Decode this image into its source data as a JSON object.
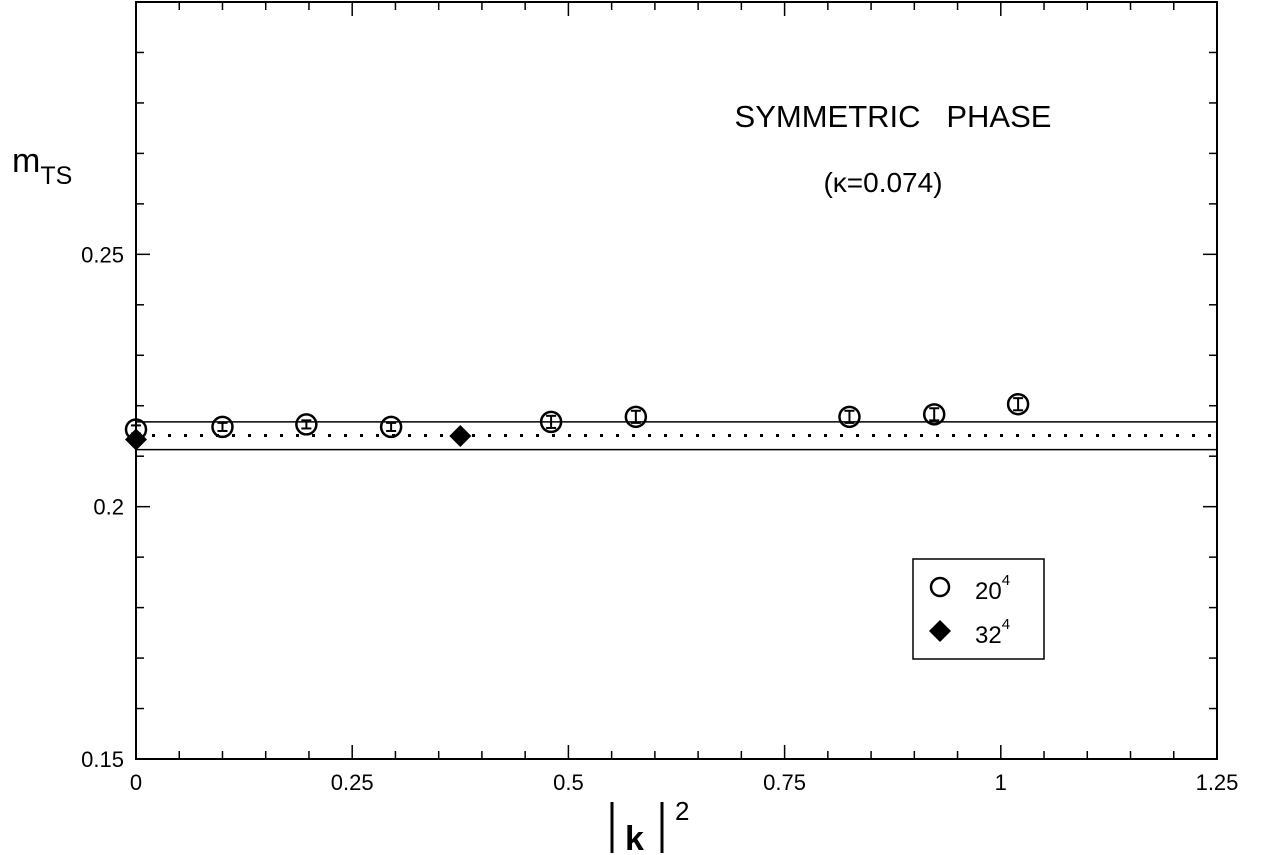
{
  "chart_data": {
    "type": "scatter",
    "title": "SYMMETRIC   PHASE",
    "subtitle": "(κ=0.074)",
    "ylabel": {
      "main": "m",
      "sub": "TS"
    },
    "xlabel": {
      "main": "k",
      "sup": "2"
    },
    "xlim": [
      0,
      1.25
    ],
    "ylim": [
      0.15,
      0.3
    ],
    "x_ticks": [
      0,
      0.25,
      0.5,
      0.75,
      1,
      1.25
    ],
    "x_tick_labels": [
      "0",
      "0.25",
      "0.5",
      "0.75",
      "1",
      "1.25"
    ],
    "y_ticks": [
      0.15,
      0.2,
      0.25
    ],
    "y_tick_labels": [
      "0.15",
      "0.2",
      "0.25"
    ],
    "grid": false,
    "legend_position": "bottom-right",
    "series": [
      {
        "name": "20^4",
        "legend_label": "20",
        "legend_sup": "4",
        "marker": "open-circle",
        "x": [
          0,
          0.1,
          0.197,
          0.295,
          0.48,
          0.578,
          0.825,
          0.923,
          1.02
        ],
        "y": [
          0.2153,
          0.2158,
          0.2163,
          0.2158,
          0.2168,
          0.2178,
          0.2178,
          0.2183,
          0.2203
        ],
        "yerr": [
          0.0008,
          0.0008,
          0.0008,
          0.0008,
          0.0012,
          0.0012,
          0.0012,
          0.0012,
          0.0012
        ]
      },
      {
        "name": "32^4",
        "legend_label": "32",
        "legend_sup": "4",
        "marker": "filled-diamond",
        "x": [
          0,
          0.375
        ],
        "y": [
          0.2133,
          0.214
        ],
        "yerr": [
          0,
          0
        ]
      }
    ],
    "horizontal_lines": [
      {
        "y": 0.2168,
        "style": "solid"
      },
      {
        "y": 0.2141,
        "style": "dotted"
      },
      {
        "y": 0.2113,
        "style": "solid"
      }
    ]
  }
}
